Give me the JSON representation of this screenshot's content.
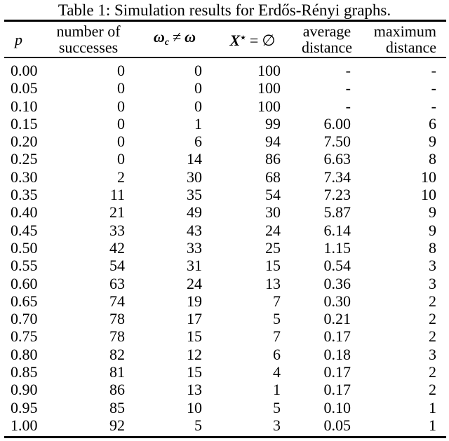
{
  "title": "Table 1: Simulation results for Erdős-Rényi graphs.",
  "colors": {
    "text": "#000000",
    "background": "#ffffff",
    "rule": "#000000"
  },
  "table": {
    "columns": [
      {
        "key": "p",
        "label": "p"
      },
      {
        "key": "successes",
        "line1": "number of",
        "line2": "successes"
      },
      {
        "key": "omega_mismatch",
        "omega1": "ω",
        "sub": "c",
        "neq": "≠",
        "omega2": "ω"
      },
      {
        "key": "x_empty",
        "x": "X",
        "star": "⋆",
        "eq": "=",
        "emptyset": "∅"
      },
      {
        "key": "avg_distance",
        "line1": "average",
        "line2": "distance"
      },
      {
        "key": "max_distance",
        "line1": "maximum",
        "line2": "distance"
      }
    ],
    "rows": [
      [
        "0.00",
        "0",
        "0",
        "100",
        "-",
        "-"
      ],
      [
        "0.05",
        "0",
        "0",
        "100",
        "-",
        "-"
      ],
      [
        "0.10",
        "0",
        "0",
        "100",
        "-",
        "-"
      ],
      [
        "0.15",
        "0",
        "1",
        "99",
        "6.00",
        "6"
      ],
      [
        "0.20",
        "0",
        "6",
        "94",
        "7.50",
        "9"
      ],
      [
        "0.25",
        "0",
        "14",
        "86",
        "6.63",
        "8"
      ],
      [
        "0.30",
        "2",
        "30",
        "68",
        "7.34",
        "10"
      ],
      [
        "0.35",
        "11",
        "35",
        "54",
        "7.23",
        "10"
      ],
      [
        "0.40",
        "21",
        "49",
        "30",
        "5.87",
        "9"
      ],
      [
        "0.45",
        "33",
        "43",
        "24",
        "6.14",
        "9"
      ],
      [
        "0.50",
        "42",
        "33",
        "25",
        "1.15",
        "8"
      ],
      [
        "0.55",
        "54",
        "31",
        "15",
        "0.54",
        "3"
      ],
      [
        "0.60",
        "63",
        "24",
        "13",
        "0.36",
        "3"
      ],
      [
        "0.65",
        "74",
        "19",
        "7",
        "0.30",
        "2"
      ],
      [
        "0.70",
        "78",
        "17",
        "5",
        "0.21",
        "2"
      ],
      [
        "0.75",
        "78",
        "15",
        "7",
        "0.17",
        "2"
      ],
      [
        "0.80",
        "82",
        "12",
        "6",
        "0.18",
        "3"
      ],
      [
        "0.85",
        "81",
        "15",
        "4",
        "0.17",
        "2"
      ],
      [
        "0.90",
        "86",
        "13",
        "1",
        "0.17",
        "2"
      ],
      [
        "0.95",
        "85",
        "10",
        "5",
        "0.10",
        "1"
      ],
      [
        "1.00",
        "92",
        "5",
        "3",
        "0.05",
        "1"
      ]
    ]
  }
}
